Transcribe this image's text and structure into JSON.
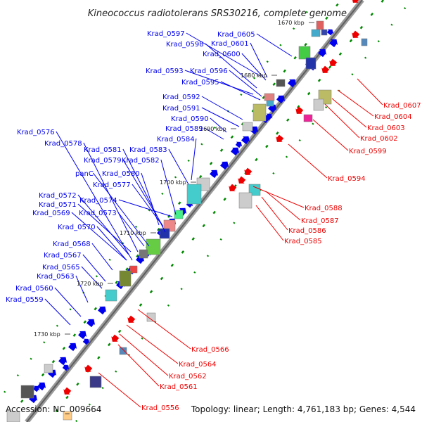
{
  "title": "Kineococcus radiotolerans SRS30216, complete genome",
  "footer": {
    "accession": "Accession: NC_009664",
    "summary": "Topology: linear; Length: 4,761,183 bp; Genes: 4,544"
  },
  "colors": {
    "forward_strand": "#0000ee",
    "reverse_strand": "#ee0000",
    "backbone": "#888888",
    "tick_marks": "#008800"
  },
  "ticks": [
    "1670 kbp",
    "1680 kbp",
    "1690 kbp",
    "1700 kbp",
    "1710 kbp",
    "1720 kbp",
    "1730 kbp"
  ],
  "forward_labels": [
    "Krad_0597",
    "Krad_0605",
    "Krad_0598",
    "Krad_0601",
    "Krad_0600",
    "Krad_0593",
    "Krad_0596",
    "Krad_0595",
    "Krad_0592",
    "Krad_0591",
    "Krad_0590",
    "Krad_0589",
    "Krad_0576",
    "Krad_0584",
    "Krad_0578",
    "Krad_0581",
    "Krad_0583",
    "Krad_0579",
    "Krad_0582",
    "panC",
    "Krad_0580",
    "Krad_0577",
    "Krad_0572",
    "Krad_0574",
    "Krad_0571",
    "Krad_0569",
    "Krad_0573",
    "Krad_0570",
    "Krad_0568",
    "Krad_0567",
    "Krad_0565",
    "Krad_0563",
    "Krad_0560",
    "Krad_0559"
  ],
  "reverse_labels": [
    "Krad_0607",
    "Krad_0604",
    "Krad_0603",
    "Krad_0602",
    "Krad_0599",
    "Krad_0594",
    "Krad_0588",
    "Krad_0587",
    "Krad_0586",
    "Krad_0585",
    "Krad_0566",
    "Krad_0564",
    "Krad_0562",
    "Krad_0561",
    "Krad_0556"
  ]
}
